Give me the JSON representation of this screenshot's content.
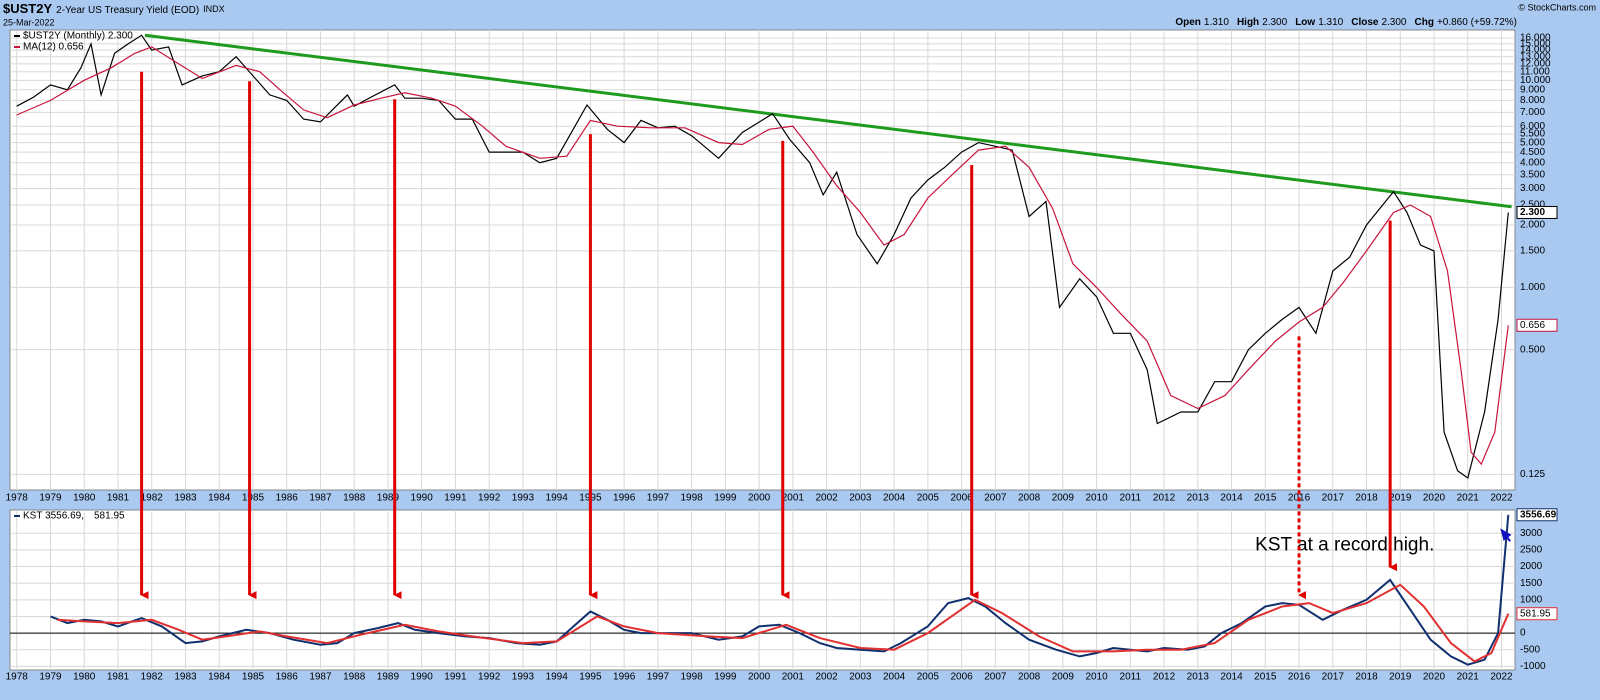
{
  "header": {
    "symbol": "$UST2Y",
    "title": "2-Year US Treasury Yield (EOD)",
    "exchange": "INDX",
    "date": "25-Mar-2022",
    "quote": [
      {
        "label": "Open",
        "value": "1.310"
      },
      {
        "label": "High",
        "value": "2.300"
      },
      {
        "label": "Low",
        "value": "1.310"
      },
      {
        "label": "Close",
        "value": "2.300"
      },
      {
        "label": "Chg",
        "value": "+0.860 (+59.72%)"
      }
    ],
    "copyright": "© StockCharts.com"
  },
  "chart_data": [
    {
      "type": "line",
      "log_scale": true,
      "grid": true,
      "xlim": [
        1977.8,
        2022.4
      ],
      "xticks": [
        1978,
        1979,
        1980,
        1981,
        1982,
        1983,
        1984,
        1985,
        1986,
        1987,
        1988,
        1989,
        1990,
        1991,
        1992,
        1993,
        1994,
        1995,
        1996,
        1997,
        1998,
        1999,
        2000,
        2001,
        2002,
        2003,
        2004,
        2005,
        2006,
        2007,
        2008,
        2009,
        2010,
        2011,
        2012,
        2013,
        2014,
        2015,
        2016,
        2017,
        2018,
        2019,
        2020,
        2021,
        2022
      ],
      "ylim": [
        0.105,
        17.5
      ],
      "yticks": [
        0.125,
        {
          "value": 0.5,
          "label": "0.500"
        },
        {
          "value": 1,
          "label": "1.000"
        },
        {
          "value": 1.5,
          "label": "1.500"
        },
        {
          "value": 2,
          "label": "2.000"
        },
        {
          "value": 2.5,
          "label": "2.500"
        },
        {
          "value": 3,
          "label": "3.000"
        },
        {
          "value": 3.5,
          "label": "3.500"
        },
        {
          "value": 4,
          "label": "4.000"
        },
        {
          "value": 4.5,
          "label": "4.500"
        },
        {
          "value": 5,
          "label": "5.000"
        },
        {
          "value": 5.5,
          "label": "5.500"
        },
        {
          "value": 6,
          "label": "6.000"
        },
        {
          "value": 7,
          "label": "7.000"
        },
        {
          "value": 8,
          "label": "8.000"
        },
        {
          "value": 9,
          "label": "9.000"
        },
        {
          "value": 10,
          "label": "10.000"
        },
        {
          "value": 11,
          "label": "11.000"
        },
        {
          "value": 12,
          "label": "12.000"
        },
        {
          "value": 13,
          "label": "13.000"
        },
        {
          "value": 14,
          "label": "14.000"
        },
        {
          "value": 15,
          "label": "15.000"
        },
        {
          "value": 16,
          "label": "16.000"
        }
      ],
      "series": [
        {
          "name": "$UST2Y (Monthly) 2.300",
          "color": "#000000",
          "value_label": "2.300",
          "x": [
            1978.0,
            1978.5,
            1979.0,
            1979.5,
            1979.9,
            1980.2,
            1980.5,
            1980.9,
            1981.3,
            1981.7,
            1982.0,
            1982.5,
            1982.9,
            1983.5,
            1984.0,
            1984.5,
            1985.0,
            1985.5,
            1986.0,
            1986.5,
            1987.0,
            1987.8,
            1988.0,
            1988.5,
            1989.2,
            1989.5,
            1990.0,
            1990.5,
            1991.0,
            1991.5,
            1992.0,
            1992.5,
            1993.0,
            1993.5,
            1994.0,
            1994.9,
            1995.5,
            1996.0,
            1996.5,
            1997.0,
            1997.5,
            1998.0,
            1998.8,
            1999.5,
            2000.4,
            2000.9,
            2001.5,
            2001.9,
            2002.3,
            2002.9,
            2003.5,
            2004.0,
            2004.5,
            2005.0,
            2005.5,
            2006.0,
            2006.5,
            2007.0,
            2007.5,
            2008.0,
            2008.5,
            2008.9,
            2009.5,
            2010.0,
            2010.5,
            2011.0,
            2011.5,
            2011.8,
            2012.5,
            2013.0,
            2013.5,
            2014.0,
            2014.5,
            2015.0,
            2015.5,
            2016.0,
            2016.5,
            2017.0,
            2017.5,
            2018.0,
            2018.8,
            2019.2,
            2019.6,
            2020.0,
            2020.3,
            2020.7,
            2021.0,
            2021.5,
            2021.9,
            2022.2
          ],
          "values": [
            7.5,
            8.3,
            9.5,
            9.0,
            11.5,
            15.0,
            8.5,
            13.5,
            15.0,
            16.5,
            14.0,
            14.5,
            9.5,
            10.5,
            11.0,
            13.0,
            10.5,
            8.5,
            8.0,
            6.5,
            6.3,
            8.5,
            7.5,
            8.3,
            9.5,
            8.2,
            8.2,
            8.0,
            6.5,
            6.5,
            4.5,
            4.5,
            4.5,
            4.0,
            4.2,
            7.6,
            5.8,
            5.0,
            6.4,
            5.9,
            6.0,
            5.4,
            4.2,
            5.6,
            6.9,
            5.2,
            4.0,
            2.8,
            3.6,
            1.8,
            1.3,
            1.8,
            2.7,
            3.3,
            3.8,
            4.5,
            5.0,
            4.8,
            4.6,
            2.2,
            2.6,
            0.8,
            1.1,
            0.9,
            0.6,
            0.6,
            0.4,
            0.22,
            0.25,
            0.25,
            0.35,
            0.35,
            0.5,
            0.6,
            0.7,
            0.8,
            0.6,
            1.2,
            1.4,
            2.0,
            2.9,
            2.3,
            1.6,
            1.5,
            0.2,
            0.13,
            0.12,
            0.25,
            0.7,
            2.3
          ]
        },
        {
          "name": "MA(12) 0.656",
          "color": "#c8143c",
          "value_label": "0.656",
          "x": [
            1978.0,
            1979.0,
            1980.0,
            1980.8,
            1981.5,
            1982.0,
            1982.8,
            1983.5,
            1984.5,
            1985.2,
            1985.8,
            1986.5,
            1987.2,
            1988.0,
            1988.8,
            1989.5,
            1990.3,
            1991.0,
            1991.8,
            1992.5,
            1993.5,
            1994.3,
            1995.0,
            1995.8,
            1996.8,
            1997.8,
            1998.8,
            1999.5,
            2000.3,
            2001.0,
            2001.6,
            2002.3,
            2003.0,
            2003.7,
            2004.3,
            2005.0,
            2005.8,
            2006.5,
            2007.3,
            2008.0,
            2008.7,
            2009.3,
            2010.0,
            2010.7,
            2011.5,
            2012.2,
            2013.0,
            2013.8,
            2014.5,
            2015.3,
            2016.0,
            2016.7,
            2017.3,
            2018.0,
            2018.8,
            2019.3,
            2019.9,
            2020.4,
            2020.8,
            2021.1,
            2021.4,
            2021.8,
            2022.2
          ],
          "values": [
            6.8,
            8.0,
            10.0,
            11.5,
            13.5,
            14.5,
            12.0,
            10.2,
            11.8,
            11.0,
            9.0,
            7.2,
            6.6,
            7.6,
            8.2,
            8.7,
            8.2,
            7.5,
            6.0,
            4.8,
            4.2,
            4.3,
            6.4,
            6.0,
            5.9,
            5.9,
            5.0,
            4.9,
            5.8,
            6.0,
            4.5,
            3.1,
            2.3,
            1.6,
            1.8,
            2.7,
            3.6,
            4.6,
            4.8,
            3.8,
            2.4,
            1.3,
            1.0,
            0.75,
            0.55,
            0.3,
            0.26,
            0.3,
            0.4,
            0.55,
            0.68,
            0.8,
            1.05,
            1.5,
            2.3,
            2.5,
            2.2,
            1.2,
            0.4,
            0.16,
            0.14,
            0.2,
            0.656
          ]
        }
      ],
      "trendline": {
        "color": "#1e9a1e",
        "x": [
          1981.8,
          2022.3
        ],
        "values": [
          16.5,
          2.45
        ]
      },
      "arrows": {
        "color": "#e00000",
        "items": [
          {
            "x": 1981.7,
            "from": 11.0,
            "to": 900,
            "dashed": false
          },
          {
            "x": 1984.9,
            "from": 9.9,
            "to": 900,
            "dashed": false
          },
          {
            "x": 1989.2,
            "from": 8.1,
            "to": 900,
            "dashed": false
          },
          {
            "x": 1995.0,
            "from": 5.5,
            "to": 900,
            "dashed": false
          },
          {
            "x": 2000.7,
            "from": 5.1,
            "to": 900,
            "dashed": false
          },
          {
            "x": 2006.3,
            "from": 3.9,
            "to": 900,
            "dashed": false
          },
          {
            "x": 2016.0,
            "from": 0.58,
            "to": 900,
            "dashed": true
          },
          {
            "x": 2018.7,
            "from": 2.1,
            "to": 1740,
            "dashed": false
          }
        ]
      }
    },
    {
      "type": "line",
      "grid": true,
      "ylim": [
        -1110,
        3700
      ],
      "yticks": [
        -1000,
        -500,
        0,
        500,
        1000,
        1500,
        2000,
        2500,
        3000
      ],
      "series": [
        {
          "name": "KST 3556.69,",
          "color": "#10306e",
          "value_label": "3556.69",
          "x": [
            1979.0,
            1979.5,
            1980.0,
            1980.5,
            1981.0,
            1981.7,
            1982.3,
            1983.0,
            1983.5,
            1984.0,
            1984.8,
            1985.5,
            1986.2,
            1987.0,
            1987.5,
            1988.0,
            1988.7,
            1989.3,
            1989.8,
            1990.5,
            1991.3,
            1992.0,
            1992.8,
            1993.5,
            1994.0,
            1994.5,
            1995.0,
            1995.5,
            1996.0,
            1996.5,
            1997.5,
            1998.0,
            1998.8,
            1999.5,
            2000.0,
            2000.6,
            2001.2,
            2001.8,
            2002.3,
            2003.0,
            2003.7,
            2004.2,
            2005.0,
            2005.6,
            2006.2,
            2006.7,
            2007.3,
            2008.0,
            2008.8,
            2009.5,
            2010.0,
            2010.5,
            2011.0,
            2011.5,
            2012.0,
            2012.7,
            2013.2,
            2013.7,
            2014.3,
            2015.0,
            2015.5,
            2016.0,
            2016.7,
            2017.3,
            2018.0,
            2018.7,
            2019.3,
            2019.9,
            2020.5,
            2021.0,
            2021.5,
            2021.9,
            2022.2
          ],
          "values": [
            500,
            300,
            400,
            350,
            200,
            450,
            200,
            -300,
            -250,
            -100,
            100,
            0,
            -200,
            -350,
            -300,
            0,
            150,
            300,
            100,
            0,
            -100,
            -150,
            -300,
            -350,
            -250,
            200,
            650,
            400,
            100,
            0,
            0,
            0,
            -200,
            -100,
            200,
            250,
            0,
            -300,
            -450,
            -500,
            -550,
            -300,
            200,
            900,
            1050,
            800,
            300,
            -200,
            -500,
            -700,
            -600,
            -450,
            -500,
            -550,
            -450,
            -500,
            -400,
            0,
            300,
            800,
            900,
            850,
            400,
            700,
            1000,
            1600,
            700,
            -200,
            -700,
            -950,
            -800,
            0,
            3556.69
          ]
        },
        {
          "name": "581.95",
          "color": "#e03030",
          "value_label": "581.95",
          "x": [
            1979.2,
            1980.0,
            1981.0,
            1982.0,
            1982.8,
            1983.5,
            1984.2,
            1985.2,
            1986.0,
            1987.2,
            1988.2,
            1989.5,
            1990.5,
            1991.5,
            1993.0,
            1994.0,
            1995.2,
            1996.0,
            1997.0,
            1998.5,
            1999.5,
            2000.8,
            2001.8,
            2003.0,
            2004.0,
            2005.0,
            2006.4,
            2007.2,
            2008.3,
            2009.3,
            2010.5,
            2011.5,
            2012.5,
            2013.5,
            2014.5,
            2015.5,
            2016.3,
            2017.0,
            2018.0,
            2019.0,
            2019.7,
            2020.5,
            2021.2,
            2021.7,
            2022.2
          ],
          "values": [
            400,
            350,
            300,
            400,
            100,
            -200,
            -100,
            50,
            -100,
            -300,
            -50,
            250,
            50,
            -100,
            -300,
            -250,
            500,
            200,
            0,
            -100,
            -150,
            250,
            -150,
            -450,
            -500,
            0,
            1000,
            600,
            -100,
            -550,
            -550,
            -500,
            -500,
            -300,
            400,
            800,
            900,
            600,
            900,
            1450,
            800,
            -300,
            -850,
            -600,
            581.95
          ]
        }
      ],
      "annotation": {
        "text": "KST at a record high.",
        "color": "#1010c0",
        "x": 2014.7,
        "y": 2640,
        "arrow_to": {
          "x": 2022.0,
          "y": 3100
        }
      }
    }
  ]
}
